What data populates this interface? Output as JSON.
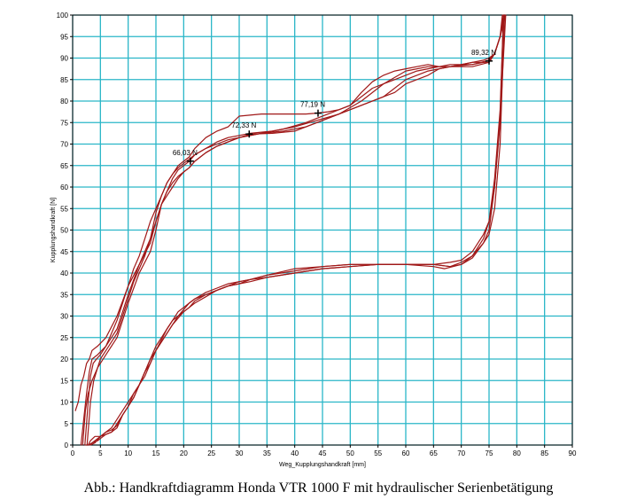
{
  "caption": "Abb.: Handkraftdiagramm Honda VTR 1000 F mit hydraulischer Serienbetätigung",
  "colors": {
    "grid": "#2ab6c8",
    "curve": "#a01818",
    "frame": "#000000",
    "marker": "#000000"
  },
  "chart_data": {
    "type": "line",
    "xlabel": "Weg_Kupplungshandkraft [mm]",
    "ylabel": "Kupplungshandkraft [N]",
    "xlim": [
      0,
      90
    ],
    "ylim": [
      0,
      100
    ],
    "xticks": [
      0,
      5,
      10,
      15,
      20,
      25,
      30,
      35,
      40,
      45,
      50,
      55,
      60,
      65,
      70,
      75,
      80,
      85,
      90
    ],
    "yticks": [
      0,
      5,
      10,
      15,
      20,
      25,
      30,
      35,
      40,
      45,
      50,
      55,
      60,
      65,
      70,
      75,
      80,
      85,
      90,
      95,
      100
    ],
    "grid": true,
    "legend": "none",
    "series": [
      {
        "x": [
          2.6,
          2.9,
          3.2,
          3.8,
          4.5,
          5,
          6,
          7,
          8,
          9,
          10,
          11,
          12,
          13,
          14,
          15,
          16,
          17,
          18,
          19,
          20,
          21,
          22,
          24,
          26,
          28,
          30,
          32,
          36,
          40,
          44,
          48,
          52,
          56,
          60,
          64,
          68,
          72,
          75,
          76,
          77,
          77.5,
          77.8
        ],
        "y": [
          0,
          5,
          10,
          15,
          18,
          20,
          22,
          24,
          26,
          30,
          34,
          38,
          41,
          44,
          48,
          52,
          56,
          59,
          62,
          64,
          65,
          66,
          67.5,
          69,
          70.5,
          71.5,
          72,
          72.5,
          73,
          74,
          75.5,
          77,
          80,
          84,
          87,
          88,
          88,
          88.5,
          89.5,
          91,
          95,
          98,
          100
        ]
      },
      {
        "x": [
          2.2,
          2.5,
          2.8,
          3.2,
          3.7,
          4.3,
          5,
          6,
          7,
          8,
          9,
          10,
          11,
          12,
          13,
          14,
          15,
          16,
          17,
          18,
          19,
          20,
          21,
          22,
          24,
          26,
          28,
          30,
          32,
          36,
          40,
          44,
          48,
          52,
          56,
          60,
          64,
          68,
          72,
          75,
          76,
          77,
          77.6,
          78
        ],
        "y": [
          0,
          5,
          10,
          16,
          19,
          20,
          21,
          23,
          26,
          29,
          33,
          37,
          41,
          44,
          48,
          52,
          55,
          58,
          61,
          63,
          64.5,
          65.5,
          66.5,
          67.5,
          69,
          70,
          71,
          71.5,
          72.3,
          72.5,
          73,
          75,
          77,
          79,
          81,
          85,
          87,
          88,
          88,
          89,
          91,
          95,
          98,
          100
        ]
      },
      {
        "x": [
          1.8,
          2.3,
          2.8,
          3.5,
          4.5,
          6,
          8,
          10,
          12,
          14,
          15,
          16,
          17,
          18,
          19,
          20,
          21,
          22,
          24,
          26,
          28,
          30,
          34,
          38,
          42,
          46,
          50,
          52,
          54,
          56,
          58,
          60,
          62,
          64,
          66,
          68,
          70,
          72,
          74,
          75,
          76,
          77,
          77.8
        ],
        "y": [
          0,
          8,
          12,
          15,
          18,
          21,
          25,
          33,
          40,
          45,
          50,
          56,
          58,
          60,
          62,
          63.5,
          64.5,
          66,
          68,
          69.5,
          70.5,
          71.5,
          72.5,
          73,
          74,
          76,
          78,
          79,
          80,
          81,
          82,
          84,
          85,
          86,
          87.5,
          88,
          88.5,
          88.5,
          89,
          89.5,
          91,
          95,
          100
        ]
      },
      {
        "x": [
          1.5,
          2,
          2.5,
          3,
          3.5,
          4.5,
          6,
          8,
          10,
          12,
          14,
          15,
          16,
          17,
          18,
          19,
          20,
          21,
          22,
          24,
          26,
          28,
          30,
          34,
          38,
          42,
          44,
          46,
          48,
          50,
          52,
          54,
          56,
          58,
          60,
          62,
          64,
          66,
          68,
          70,
          72,
          74,
          75,
          76,
          77,
          77.6
        ],
        "y": [
          0,
          6,
          12,
          17,
          20,
          21,
          23,
          27,
          35,
          42,
          48,
          54,
          58,
          61,
          63,
          65,
          66,
          67,
          69,
          71.5,
          73,
          74,
          76.5,
          77,
          77,
          77,
          77.2,
          77.5,
          78,
          79,
          82,
          84.5,
          86,
          87,
          87.5,
          88,
          88.5,
          88,
          88,
          88.5,
          89,
          89,
          89,
          91,
          95,
          100
        ]
      },
      {
        "x": [
          0.5,
          1,
          1.5,
          2,
          2.5,
          3,
          3.5,
          4.5,
          6,
          8,
          10,
          12,
          14,
          15,
          16,
          17,
          18,
          19,
          20,
          21,
          22,
          24,
          26,
          28,
          30,
          34,
          38,
          42,
          46,
          50,
          52,
          54,
          56,
          58,
          60,
          62,
          64,
          66,
          68,
          70,
          72,
          74,
          75,
          76,
          77,
          77.4
        ],
        "y": [
          8,
          10,
          14,
          16,
          19,
          20,
          22,
          23,
          25,
          30,
          37,
          42,
          47,
          52,
          56,
          59,
          61,
          62.5,
          63.5,
          64.5,
          66,
          68,
          69.5,
          70.5,
          71.5,
          72.5,
          73.5,
          75,
          77,
          79,
          81,
          83,
          84,
          85,
          86,
          87,
          87.5,
          88,
          88.5,
          88.5,
          89,
          89.5,
          90,
          91,
          95,
          100
        ]
      },
      {
        "x": [
          2.4,
          2.8,
          3.2,
          4,
          5,
          6,
          7,
          8,
          9,
          10,
          11,
          12,
          13,
          14,
          15,
          16,
          17,
          18,
          19,
          20,
          21,
          22,
          24,
          26,
          28,
          30,
          32,
          35,
          40,
          45,
          50,
          55,
          60,
          65,
          68,
          70,
          72,
          74,
          75,
          76,
          77,
          77.5,
          78
        ],
        "y": [
          0,
          0,
          1,
          2,
          2,
          3,
          4,
          6,
          8,
          10,
          12,
          14,
          17,
          20,
          23,
          25,
          27,
          29,
          30,
          31.5,
          33,
          34,
          35.5,
          36.5,
          37.5,
          38,
          38.5,
          39.5,
          40.5,
          41.5,
          42,
          42,
          42,
          42,
          41.5,
          42.5,
          44,
          48,
          52,
          60,
          75,
          88,
          100
        ]
      },
      {
        "x": [
          3,
          3.5,
          4,
          5,
          6,
          7,
          8,
          9,
          10,
          11,
          12,
          13,
          14,
          15,
          16,
          17,
          18,
          19,
          20,
          21,
          22,
          24,
          26,
          28,
          30,
          32,
          35,
          40,
          45,
          50,
          55,
          60,
          65,
          67,
          70,
          72,
          74,
          75,
          76,
          77,
          77.6
        ],
        "y": [
          0,
          0.5,
          1,
          2,
          2.5,
          3,
          5,
          7,
          9,
          11,
          14,
          16,
          19,
          22,
          24,
          26,
          28,
          29.5,
          31,
          32,
          33,
          34.5,
          36,
          37,
          38,
          38.5,
          39,
          40,
          41,
          41.5,
          42,
          42,
          41.5,
          41,
          42,
          44,
          47,
          50,
          60,
          76,
          100
        ]
      },
      {
        "x": [
          2.8,
          3.5,
          4.5,
          5,
          6,
          7,
          8,
          9,
          10,
          11,
          12,
          13,
          14,
          15,
          16,
          17,
          18,
          19,
          20,
          21,
          22,
          24,
          26,
          28,
          30,
          32,
          35,
          40,
          45,
          50,
          55,
          60,
          65,
          68,
          70,
          72,
          74,
          75,
          76,
          77,
          77.8
        ],
        "y": [
          0,
          0.5,
          1,
          1.5,
          2.5,
          3,
          4,
          7,
          9,
          11,
          14,
          17,
          19,
          22,
          24,
          26,
          28,
          30,
          31,
          32,
          33.5,
          35,
          36,
          37,
          37.5,
          38,
          39,
          40,
          41,
          41.5,
          42,
          42,
          42,
          41.5,
          42,
          43.5,
          47,
          49,
          55,
          70,
          100
        ]
      },
      {
        "x": [
          3.2,
          4,
          5,
          6,
          7,
          8,
          9,
          10,
          11,
          12,
          13,
          14,
          15,
          16,
          17,
          18,
          19,
          20,
          21,
          22,
          24,
          26,
          28,
          30,
          32,
          35,
          40,
          45,
          50,
          55,
          60,
          65,
          68,
          70,
          72,
          74,
          75,
          76,
          77,
          77.6
        ],
        "y": [
          0,
          0.5,
          2,
          3,
          3.5,
          4.5,
          7,
          9,
          12,
          14,
          17,
          20,
          22,
          24.5,
          27,
          29,
          31,
          32,
          33,
          34,
          35,
          36,
          37,
          37.5,
          38.5,
          39.5,
          41,
          41.5,
          42,
          42,
          42,
          42,
          42.5,
          43,
          45,
          49,
          52,
          62,
          78,
          100
        ]
      }
    ],
    "markers": [
      {
        "x": 21.2,
        "y": 66.03,
        "label": "66,03 N"
      },
      {
        "x": 31.8,
        "y": 72.33,
        "label": "72,33 N"
      },
      {
        "x": 44.2,
        "y": 77.19,
        "label": "77,19 N"
      },
      {
        "x": 75.0,
        "y": 89.32,
        "label": "89,32 N"
      }
    ]
  }
}
